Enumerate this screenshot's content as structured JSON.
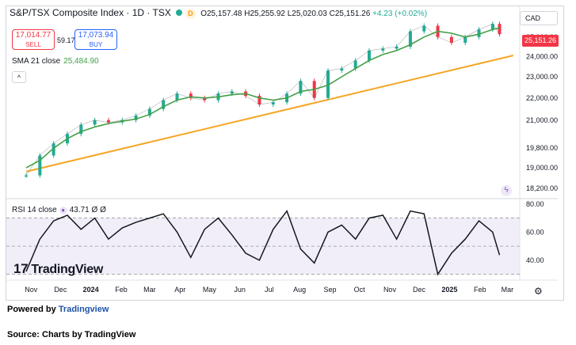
{
  "header": {
    "title": "S&P/TSX Composite Index · 1D · TSX",
    "d_badge": "D",
    "open": "O25,157.48",
    "high": "H25,255.92",
    "low": "L25,020.03",
    "close": "C25,151.26",
    "change": "+4.23 (+0.02%)"
  },
  "trade": {
    "sell_price": "17,014.77",
    "sell_label": "SELL",
    "spread": "59.17",
    "buy_price": "17,073.94",
    "buy_label": "BUY"
  },
  "sma": {
    "label": "SMA 21 close",
    "value": "25,484.90"
  },
  "collapse_icon": "chevron-up-icon",
  "collapse_glyph": "^",
  "rsi": {
    "label": "RSI 14 close",
    "value": "43.71",
    "extra": "Ø Ø"
  },
  "currency": "CAD",
  "last_price": "25,151.26",
  "logo": {
    "mark": "17",
    "text": "TradingView"
  },
  "powered_by": {
    "prefix": "Powered by",
    "link": "Tradingview"
  },
  "source": "Source: Charts by TradingView",
  "colors": {
    "up": "#22ab94",
    "down": "#f23645",
    "sma": "#43a047",
    "trend": "#f5a623",
    "rsi": "#131722",
    "rsi_band": "#e8e3f4",
    "accent": "#2962ff"
  },
  "chart_data": [
    {
      "type": "line",
      "series": [
        {
          "name": "S&P/TSX Composite Index",
          "x": [
            "2023-10-27",
            "2023-11-10",
            "2023-11-24",
            "2023-12-08",
            "2023-12-22",
            "2024-01-05",
            "2024-01-19",
            "2024-02-02",
            "2024-02-16",
            "2024-03-01",
            "2024-03-15",
            "2024-03-29",
            "2024-04-12",
            "2024-04-26",
            "2024-05-10",
            "2024-05-24",
            "2024-06-07",
            "2024-06-21",
            "2024-07-05",
            "2024-07-19",
            "2024-08-02",
            "2024-08-16",
            "2024-08-30",
            "2024-09-13",
            "2024-09-27",
            "2024-10-11",
            "2024-10-25",
            "2024-11-08",
            "2024-11-22",
            "2024-12-06",
            "2024-12-20",
            "2025-01-03",
            "2025-01-17",
            "2025-01-31",
            "2025-02-14",
            "2025-02-21"
          ],
          "values": [
            18700,
            19500,
            20000,
            20400,
            20800,
            21000,
            20900,
            21000,
            21200,
            21500,
            21900,
            22200,
            22000,
            21900,
            22200,
            22300,
            22100,
            21700,
            21800,
            22200,
            22800,
            22000,
            23300,
            23400,
            23800,
            24300,
            24400,
            24500,
            25300,
            25600,
            25000,
            24700,
            25000,
            25400,
            25700,
            25151
          ]
        },
        {
          "name": "SMA 21 close",
          "x": [
            "2023-10-27",
            "2023-11-10",
            "2023-11-24",
            "2023-12-08",
            "2023-12-22",
            "2024-01-05",
            "2024-01-19",
            "2024-02-02",
            "2024-02-16",
            "2024-03-01",
            "2024-03-15",
            "2024-03-29",
            "2024-04-12",
            "2024-04-26",
            "2024-05-10",
            "2024-05-24",
            "2024-06-07",
            "2024-06-21",
            "2024-07-05",
            "2024-07-19",
            "2024-08-02",
            "2024-08-16",
            "2024-08-30",
            "2024-09-13",
            "2024-09-27",
            "2024-10-11",
            "2024-10-25",
            "2024-11-08",
            "2024-11-22",
            "2024-12-06",
            "2024-12-20",
            "2025-01-03",
            "2025-01-17",
            "2025-01-31",
            "2025-02-14",
            "2025-02-21"
          ],
          "values": [
            19000,
            19300,
            19800,
            20200,
            20500,
            20700,
            20850,
            20950,
            21050,
            21250,
            21600,
            21900,
            22050,
            22000,
            22050,
            22150,
            22200,
            22000,
            21900,
            22000,
            22300,
            22400,
            22600,
            23000,
            23400,
            23800,
            24100,
            24300,
            24600,
            25000,
            25300,
            25200,
            25000,
            25150,
            25400,
            25484.9
          ]
        },
        {
          "name": "Trendline",
          "x": [
            "2023-10-27",
            "2025-03-07"
          ],
          "values": [
            18850,
            24050
          ]
        }
      ],
      "y_ticks": [
        "25,000.00",
        "24,000.00",
        "23,000.00",
        "22,000.00",
        "21,000.00",
        "19,800.00",
        "19,000.00",
        "18,200.00"
      ],
      "y_tick_values": [
        25000,
        24000,
        23000,
        22000,
        21000,
        19800,
        19000,
        18200
      ],
      "y_scale": "log",
      "ylim": [
        17900,
        26400
      ],
      "x_ticks": [
        "Nov",
        "Dec",
        "2024",
        "Feb",
        "Mar",
        "Apr",
        "May",
        "Jun",
        "Jul",
        "Aug",
        "Sep",
        "Oct",
        "Nov",
        "Dec",
        "2025",
        "Feb",
        "Mar"
      ],
      "grid": false
    },
    {
      "type": "line",
      "series": [
        {
          "name": "RSI 14 close",
          "x": [
            "2023-10-27",
            "2023-11-10",
            "2023-11-24",
            "2023-12-08",
            "2023-12-22",
            "2024-01-05",
            "2024-01-19",
            "2024-02-02",
            "2024-02-16",
            "2024-03-01",
            "2024-03-15",
            "2024-03-29",
            "2024-04-12",
            "2024-04-26",
            "2024-05-10",
            "2024-05-24",
            "2024-06-07",
            "2024-06-21",
            "2024-07-05",
            "2024-07-19",
            "2024-08-02",
            "2024-08-16",
            "2024-08-30",
            "2024-09-13",
            "2024-09-27",
            "2024-10-11",
            "2024-10-25",
            "2024-11-08",
            "2024-11-22",
            "2024-12-06",
            "2024-12-20",
            "2025-01-03",
            "2025-01-17",
            "2025-01-31",
            "2025-02-14",
            "2025-02-21"
          ],
          "values": [
            32,
            55,
            68,
            72,
            62,
            70,
            55,
            63,
            67,
            70,
            73,
            60,
            42,
            62,
            70,
            58,
            45,
            40,
            62,
            75,
            48,
            38,
            60,
            65,
            55,
            70,
            72,
            55,
            75,
            73,
            30,
            45,
            55,
            68,
            60,
            43.71
          ]
        }
      ],
      "y_ticks": [
        "80.00",
        "60.00",
        "40.00"
      ],
      "y_tick_values": [
        80,
        60,
        40
      ],
      "ylim": [
        27,
        81
      ],
      "band": [
        30,
        70
      ],
      "mid": 50
    }
  ]
}
